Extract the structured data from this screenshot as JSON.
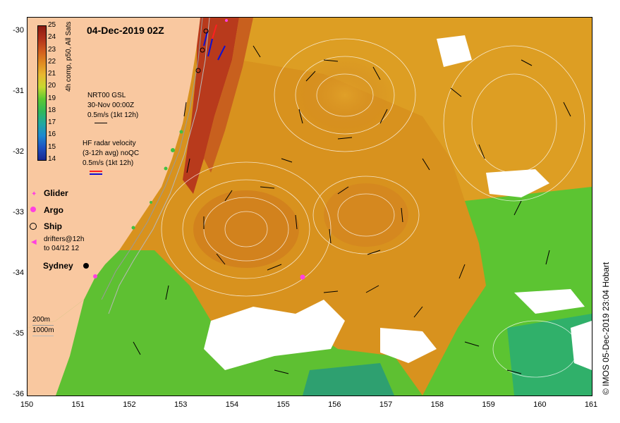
{
  "title": "04-Dec-2019 02Z",
  "credit": "© IMOS 05-Dec-2019 23:04 Hobart",
  "colorbar": {
    "title": "4h comp, p50, All Sats",
    "labels": [
      "25",
      "24",
      "23",
      "22",
      "21",
      "20",
      "19",
      "18",
      "17",
      "16",
      "15",
      "14"
    ],
    "colors": [
      "#8b1a12",
      "#b0301a",
      "#d05a1e",
      "#e08a20",
      "#e8b830",
      "#c8d830",
      "#5cc832",
      "#30b85a",
      "#20a8a0",
      "#1e88d0",
      "#1e50c0",
      "#1a2890"
    ]
  },
  "legend": {
    "nrt_line1": "NRT00 GSL",
    "nrt_line2": "30-Nov 00:00Z",
    "nrt_line3": "0.5m/s (1kt 12h)",
    "hf_line1": "HF radar velocity",
    "hf_line2": "(3-12h avg) noQC",
    "hf_line3": "0.5m/s (1kt 12h)",
    "glider": "Glider",
    "argo": "Argo",
    "ship": "Ship",
    "drifters_line1": "drifters@12h",
    "drifters_line2": "to 04/12 12",
    "sydney": "Sydney",
    "depth_200": "200m",
    "depth_1000": "1000m"
  },
  "axes": {
    "lat_labels": [
      "-30",
      "-31",
      "-32",
      "-33",
      "-34",
      "-35",
      "-36"
    ],
    "lon_labels": [
      "150",
      "151",
      "152",
      "153",
      "154",
      "155",
      "156",
      "157",
      "158",
      "159",
      "160",
      "161"
    ]
  },
  "colors": {
    "land": "#f9c8a0",
    "ocean_warm": "#d8901c",
    "ocean_cool": "#58c030",
    "cloud": "#ffffff"
  }
}
